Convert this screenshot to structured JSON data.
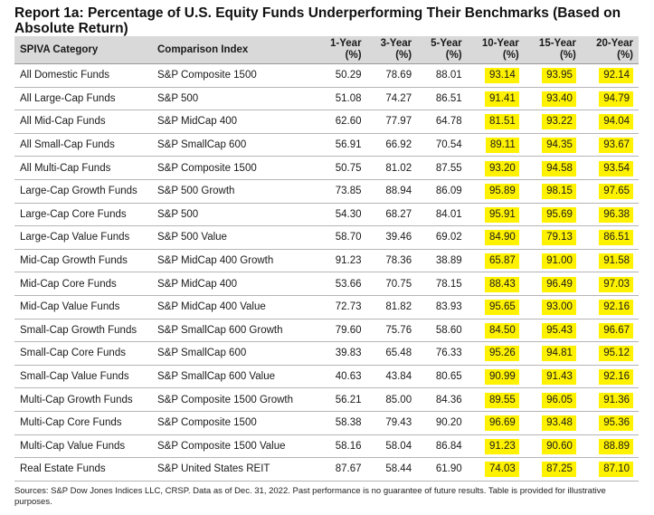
{
  "title": "Report 1a: Percentage of U.S. Equity Funds Underperforming Their Benchmarks (Based on Absolute Return)",
  "headers": [
    "SPIVA Category",
    "Comparison Index",
    "1-Year (%)",
    "3-Year (%)",
    "5-Year (%)",
    "10-Year (%)",
    "15-Year (%)",
    "20-Year (%)"
  ],
  "highlight_color": "#fff200",
  "header_bg": "#d9d9d9",
  "rows": [
    [
      "All Domestic Funds",
      "S&P Composite 1500",
      "50.29",
      "78.69",
      "88.01",
      "93.14",
      "93.95",
      "92.14"
    ],
    [
      "All Large-Cap Funds",
      "S&P 500",
      "51.08",
      "74.27",
      "86.51",
      "91.41",
      "93.40",
      "94.79"
    ],
    [
      "All Mid-Cap Funds",
      "S&P MidCap 400",
      "62.60",
      "77.97",
      "64.78",
      "81.51",
      "93.22",
      "94.04"
    ],
    [
      "All Small-Cap Funds",
      "S&P SmallCap 600",
      "56.91",
      "66.92",
      "70.54",
      "89.11",
      "94.35",
      "93.67"
    ],
    [
      "All Multi-Cap Funds",
      "S&P Composite 1500",
      "50.75",
      "81.02",
      "87.55",
      "93.20",
      "94.58",
      "93.54"
    ],
    [
      "Large-Cap Growth Funds",
      "S&P 500 Growth",
      "73.85",
      "88.94",
      "86.09",
      "95.89",
      "98.15",
      "97.65"
    ],
    [
      "Large-Cap Core Funds",
      "S&P 500",
      "54.30",
      "68.27",
      "84.01",
      "95.91",
      "95.69",
      "96.38"
    ],
    [
      "Large-Cap Value Funds",
      "S&P 500 Value",
      "58.70",
      "39.46",
      "69.02",
      "84.90",
      "79.13",
      "86.51"
    ],
    [
      "Mid-Cap Growth Funds",
      "S&P MidCap 400 Growth",
      "91.23",
      "78.36",
      "38.89",
      "65.87",
      "91.00",
      "91.58"
    ],
    [
      "Mid-Cap Core Funds",
      "S&P MidCap 400",
      "53.66",
      "70.75",
      "78.15",
      "88.43",
      "96.49",
      "97.03"
    ],
    [
      "Mid-Cap Value Funds",
      "S&P MidCap 400 Value",
      "72.73",
      "81.82",
      "83.93",
      "95.65",
      "93.00",
      "92.16"
    ],
    [
      "Small-Cap Growth Funds",
      "S&P SmallCap 600 Growth",
      "79.60",
      "75.76",
      "58.60",
      "84.50",
      "95.43",
      "96.67"
    ],
    [
      "Small-Cap Core Funds",
      "S&P SmallCap 600",
      "39.83",
      "65.48",
      "76.33",
      "95.26",
      "94.81",
      "95.12"
    ],
    [
      "Small-Cap Value Funds",
      "S&P SmallCap 600 Value",
      "40.63",
      "43.84",
      "80.65",
      "90.99",
      "91.43",
      "92.16"
    ],
    [
      "Multi-Cap Growth Funds",
      "S&P Composite 1500 Growth",
      "56.21",
      "85.00",
      "84.36",
      "89.55",
      "96.05",
      "91.36"
    ],
    [
      "Multi-Cap Core Funds",
      "S&P Composite 1500",
      "58.38",
      "79.43",
      "90.20",
      "96.69",
      "93.48",
      "95.36"
    ],
    [
      "Multi-Cap Value Funds",
      "S&P Composite 1500 Value",
      "58.16",
      "58.04",
      "86.84",
      "91.23",
      "90.60",
      "88.89"
    ],
    [
      "Real Estate Funds",
      "S&P United States REIT",
      "87.67",
      "58.44",
      "61.90",
      "74.03",
      "87.25",
      "87.10"
    ]
  ],
  "footnote": "Sources: S&P Dow Jones Indices LLC, CRSP. Data as of Dec. 31, 2022. Past performance is no guarantee of future results. Table is provided for illustrative purposes."
}
